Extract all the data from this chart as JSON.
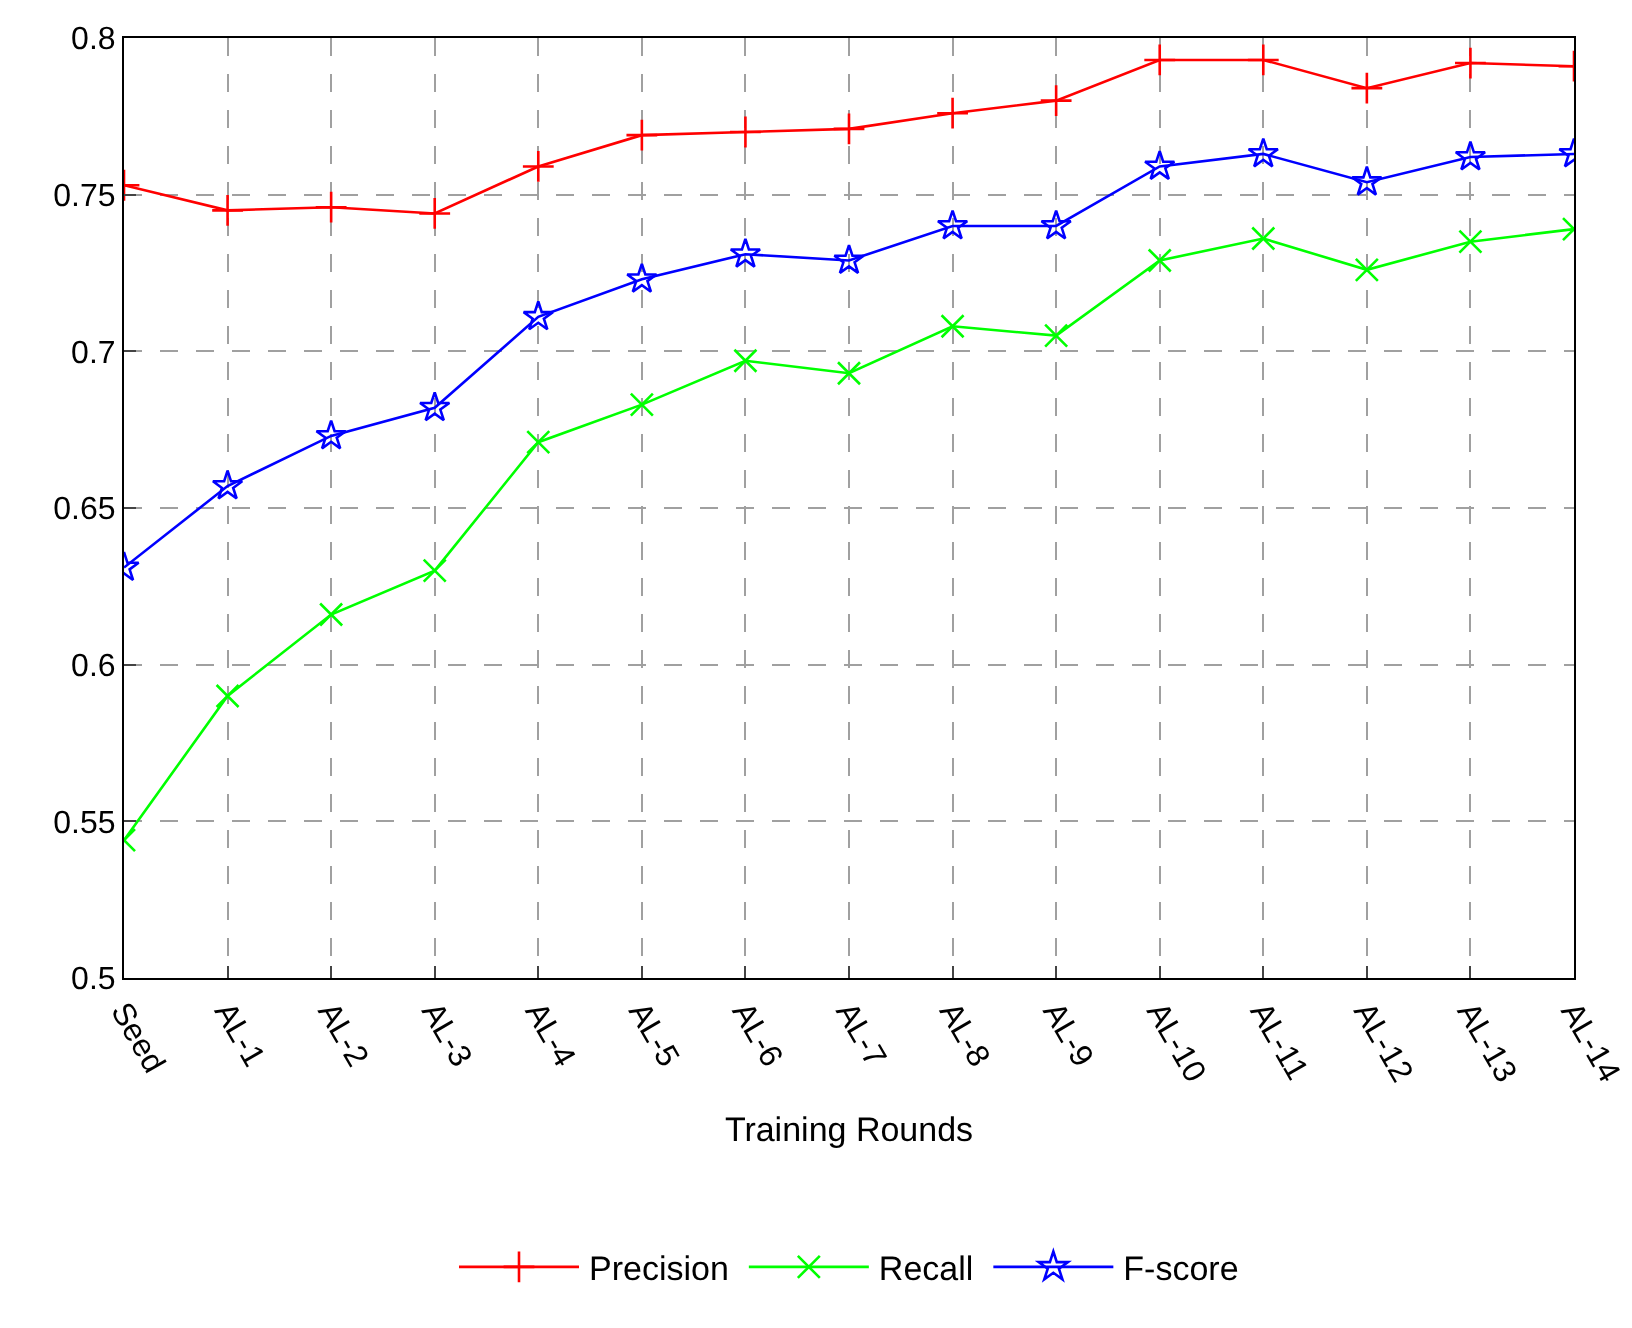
{
  "chart_data": {
    "type": "line",
    "xlabel": "Training Rounds",
    "categories": [
      "Seed",
      "AL-1",
      "AL-2",
      "AL-3",
      "AL-4",
      "AL-5",
      "AL-6",
      "AL-7",
      "AL-8",
      "AL-9",
      "AL-10",
      "AL-11",
      "AL-12",
      "AL-13",
      "AL-14"
    ],
    "series": [
      {
        "name": "Precision",
        "color": "#ff0000",
        "marker": "cross",
        "values": [
          0.753,
          0.745,
          0.746,
          0.744,
          0.759,
          0.769,
          0.77,
          0.771,
          0.776,
          0.78,
          0.793,
          0.793,
          0.784,
          0.792,
          0.791
        ]
      },
      {
        "name": "Recall",
        "color": "#00ff00",
        "marker": "x",
        "values": [
          0.544,
          0.59,
          0.616,
          0.63,
          0.671,
          0.683,
          0.697,
          0.693,
          0.708,
          0.705,
          0.729,
          0.736,
          0.726,
          0.735,
          0.739
        ]
      },
      {
        "name": "F-score",
        "color": "#0000ff",
        "marker": "star",
        "values": [
          0.631,
          0.657,
          0.673,
          0.682,
          0.711,
          0.723,
          0.731,
          0.729,
          0.74,
          0.74,
          0.759,
          0.763,
          0.754,
          0.762,
          0.763
        ]
      }
    ],
    "ylim": [
      0.5,
      0.8
    ],
    "yticks": [
      0.5,
      0.55,
      0.6,
      0.65,
      0.7,
      0.75,
      0.8
    ],
    "grid": true,
    "legend": "bottom",
    "line_style": "solid"
  }
}
